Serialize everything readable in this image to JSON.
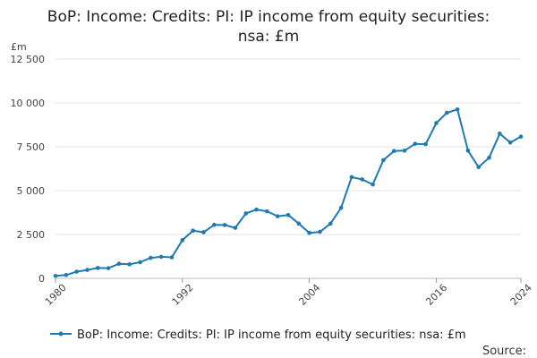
{
  "chart_data": {
    "type": "line",
    "title_lines": [
      "BoP: Income: Credits: PI: IP income from equity securities:",
      "nsa: £m"
    ],
    "unit_label": "£m",
    "ylim": [
      0,
      12500
    ],
    "y_ticks": [
      0,
      2500,
      5000,
      7500,
      10000,
      12500
    ],
    "y_tick_labels": [
      "0",
      "2 500",
      "5 000",
      "7 500",
      "10 000",
      "12 500"
    ],
    "xlim": [
      1980,
      2024
    ],
    "x_ticks": [
      1980,
      1992,
      2004,
      2016,
      2024
    ],
    "x_tick_labels": [
      "1980",
      "1992",
      "2004",
      "2016",
      "2024"
    ],
    "grid": "horizontal",
    "legend_position": "bottom",
    "line_color": "#1f7ab3",
    "series": [
      {
        "name": "BoP: Income: Credits: PI: IP income from equity securities: nsa: £m",
        "x": [
          1980,
          1981,
          1982,
          1983,
          1984,
          1985,
          1986,
          1987,
          1988,
          1989,
          1990,
          1991,
          1992,
          1993,
          1994,
          1995,
          1996,
          1997,
          1998,
          1999,
          2000,
          2001,
          2002,
          2003,
          2004,
          2005,
          2006,
          2007,
          2008,
          2009,
          2010,
          2011,
          2012,
          2013,
          2014,
          2015,
          2016,
          2017,
          2018,
          2019,
          2020,
          2021,
          2022,
          2023,
          2024
        ],
        "values": [
          140,
          190,
          380,
          480,
          590,
          580,
          830,
          800,
          920,
          1170,
          1230,
          1200,
          2180,
          2720,
          2630,
          3050,
          3040,
          2880,
          3700,
          3920,
          3820,
          3540,
          3610,
          3120,
          2590,
          2650,
          3120,
          4020,
          5770,
          5640,
          5350,
          6740,
          7260,
          7280,
          7670,
          7650,
          8850,
          9440,
          9630,
          7280,
          6340,
          6880,
          8250,
          7740,
          8080
        ]
      }
    ],
    "source_label": "Source:"
  }
}
